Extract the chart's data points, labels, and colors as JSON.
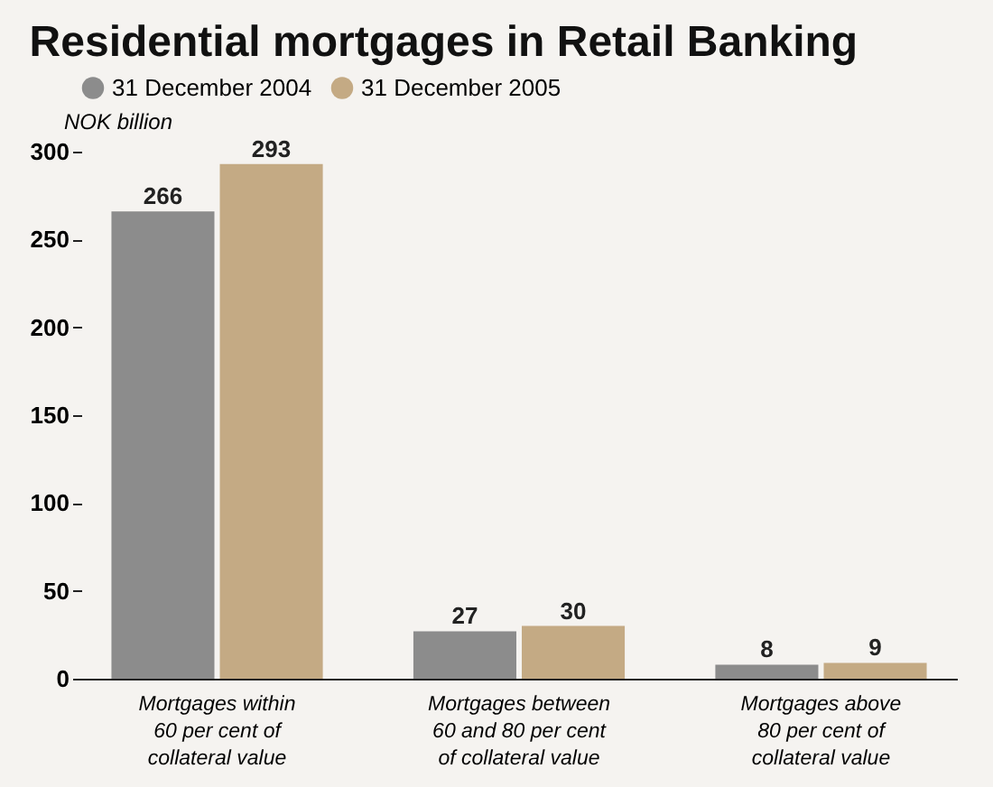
{
  "chart_data": {
    "type": "bar",
    "title": "Residential mortgages in Retail Banking",
    "ylabel": "NOK billion",
    "categories": [
      "Mortgages within 60 per cent of collateral value",
      "Mortgages between 60 and 80 per cent of collateral value",
      "Mortgages above 80 per cent of collateral value"
    ],
    "series": [
      {
        "name": "31 December 2004",
        "color": "#8c8c8c",
        "values": [
          266,
          27,
          8
        ]
      },
      {
        "name": "31 December 2005",
        "color": "#c4aa84",
        "values": [
          293,
          30,
          9
        ]
      }
    ],
    "ylim": [
      0,
      300
    ],
    "yticks": [
      0,
      50,
      100,
      150,
      200,
      250,
      300
    ],
    "grid": false,
    "legend": "top left",
    "data_labels": true
  }
}
